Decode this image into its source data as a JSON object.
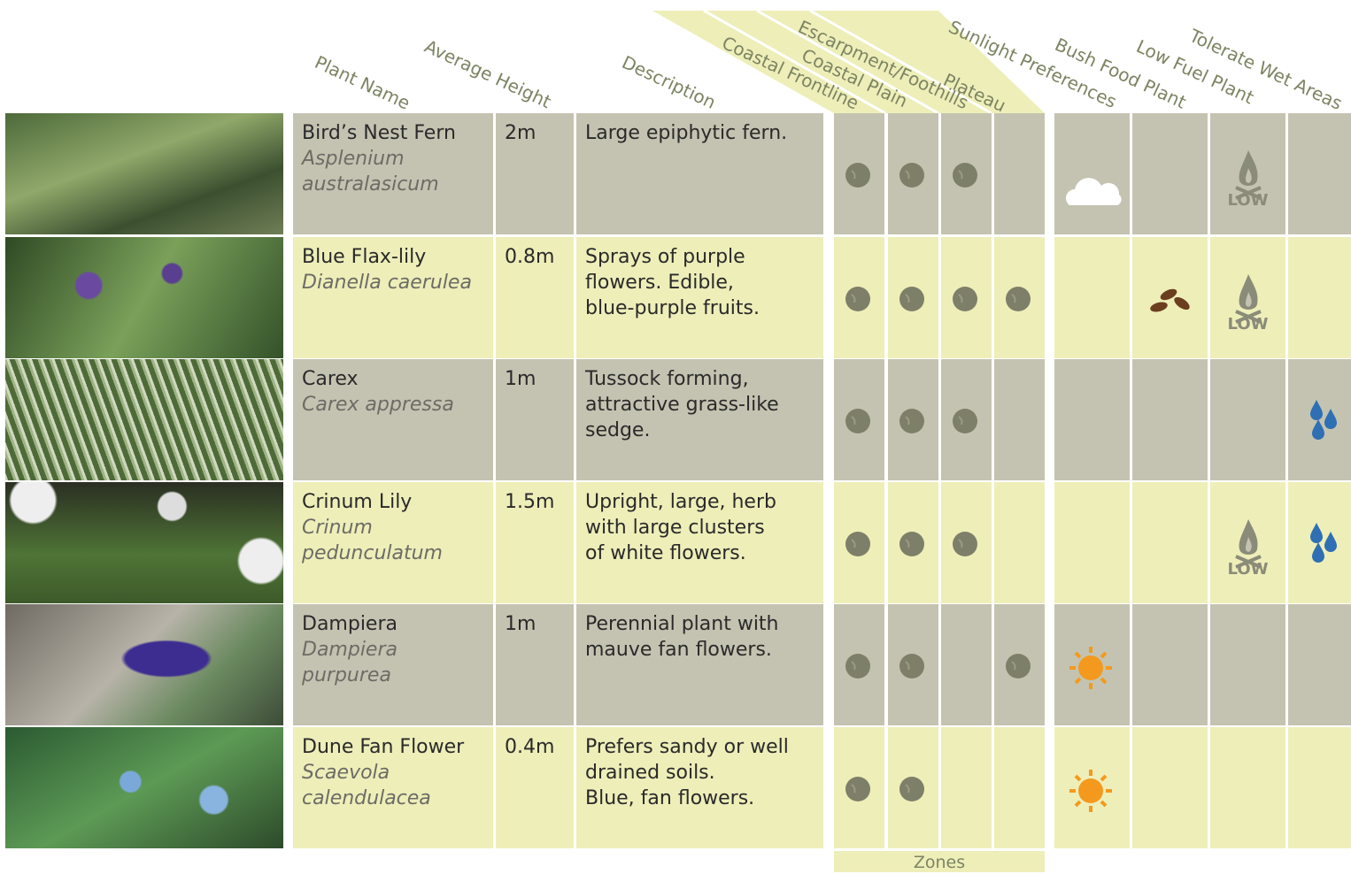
{
  "columns": [
    "Plant Name",
    "Average Height",
    "Description",
    "Coastal Frontline",
    "Coastal Plain",
    "Escarpment/Foothills",
    "Plateau",
    "Sunlight Preferences",
    "Bush Food Plant",
    "Low Fuel Plant",
    "Tolerate Wet Areas"
  ],
  "rows": [
    {
      "name": "Bird’s Nest Fern",
      "scientific": "Asplenium australasicum",
      "height": "2m",
      "description": [
        "Large epiphytic fern."
      ],
      "zones": [
        true,
        true,
        true,
        false
      ],
      "sunlight": "shade",
      "bush_food": false,
      "low_fuel": "LOW",
      "wet_tolerant": false
    },
    {
      "name": "Blue Flax-lily",
      "scientific": "Dianella caerulea",
      "height": "0.8m",
      "description": [
        "Sprays of purple",
        "flowers. Edible,",
        "blue-purple fruits."
      ],
      "zones": [
        true,
        true,
        true,
        true
      ],
      "sunlight": null,
      "bush_food": true,
      "low_fuel": "LOW",
      "wet_tolerant": false
    },
    {
      "name": "Carex",
      "scientific": "Carex appressa",
      "height": "1m",
      "description": [
        "Tussock forming,",
        "attractive grass-like",
        "sedge."
      ],
      "zones": [
        true,
        true,
        true,
        false
      ],
      "sunlight": null,
      "bush_food": false,
      "low_fuel": null,
      "wet_tolerant": true
    },
    {
      "name": "Crinum Lily",
      "scientific": "Crinum pedunculatum",
      "height": "1.5m",
      "description": [
        "Upright, large, herb",
        "with large clusters",
        "of white flowers."
      ],
      "zones": [
        true,
        true,
        true,
        false
      ],
      "sunlight": null,
      "bush_food": false,
      "low_fuel": "LOW",
      "wet_tolerant": true
    },
    {
      "name": "Dampiera",
      "scientific": "Dampiera purpurea",
      "height": "1m",
      "description": [
        "Perennial plant with",
        "mauve fan flowers."
      ],
      "zones": [
        true,
        true,
        false,
        true
      ],
      "sunlight": "sun",
      "bush_food": false,
      "low_fuel": null,
      "wet_tolerant": false
    },
    {
      "name": "Dune Fan Flower",
      "scientific": "Scaevola calendulacea",
      "height": "0.4m",
      "description": [
        "Prefers sandy or well",
        "drained soils.",
        "Blue, fan flowers."
      ],
      "zones": [
        true,
        true,
        false,
        false
      ],
      "sunlight": "sun",
      "bush_food": false,
      "low_fuel": null,
      "wet_tolerant": false
    }
  ],
  "footer": "Zones"
}
